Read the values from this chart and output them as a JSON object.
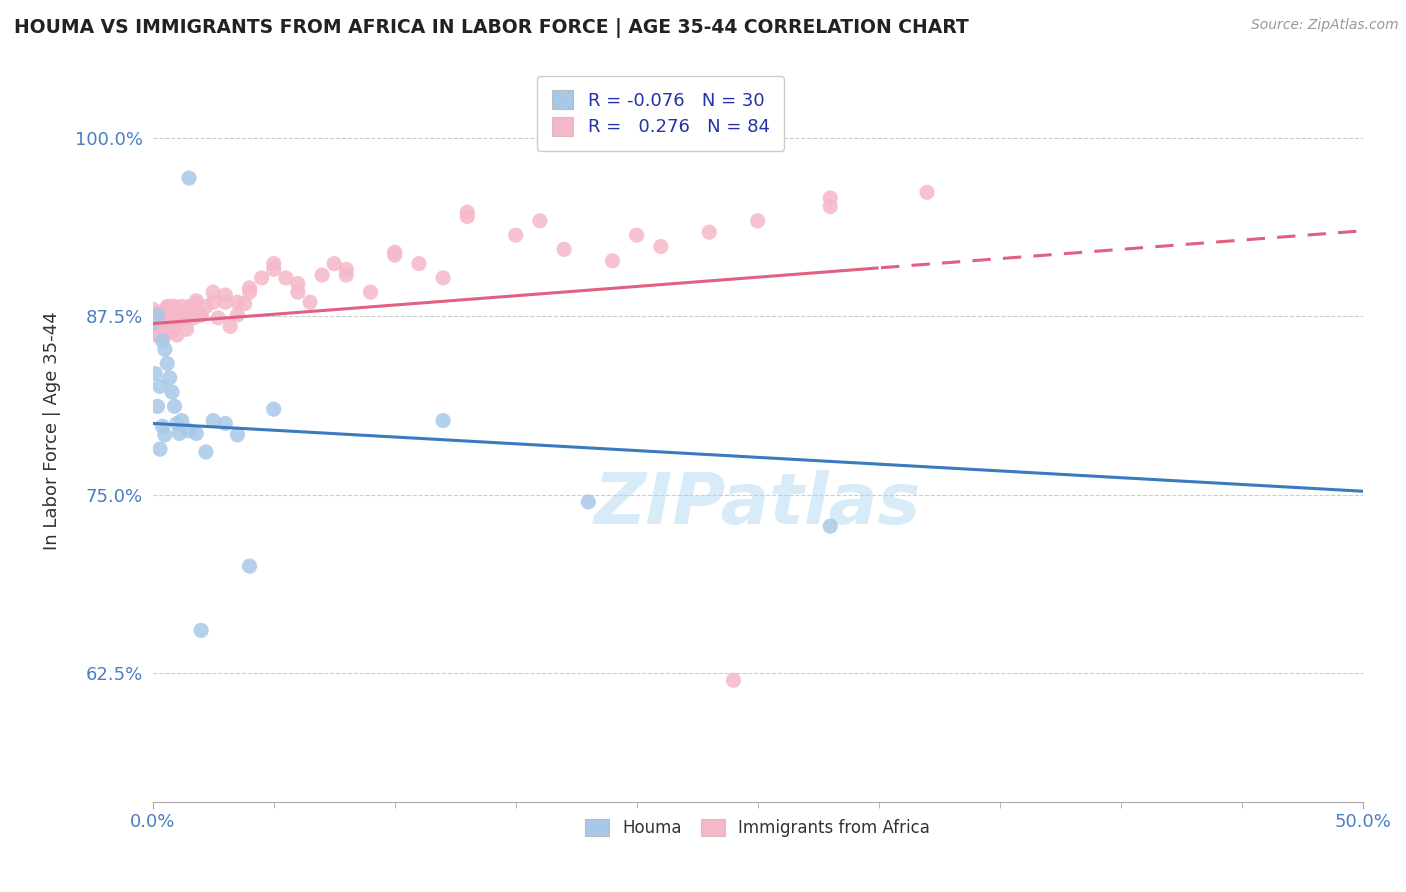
{
  "title": "HOUMA VS IMMIGRANTS FROM AFRICA IN LABOR FORCE | AGE 35-44 CORRELATION CHART",
  "source": "Source: ZipAtlas.com",
  "ylabel": "In Labor Force | Age 35-44",
  "yticks": [
    0.625,
    0.75,
    0.875,
    1.0
  ],
  "ytick_labels": [
    "62.5%",
    "75.0%",
    "87.5%",
    "100.0%"
  ],
  "xlim": [
    0.0,
    0.5
  ],
  "ylim": [
    0.535,
    1.055
  ],
  "legend_r_blue": "-0.076",
  "legend_n_blue": "30",
  "legend_r_pink": "0.276",
  "legend_n_pink": "84",
  "blue_color": "#a8c8e8",
  "pink_color": "#f5b8c8",
  "blue_line_color": "#3a7abf",
  "pink_line_color": "#e06080",
  "watermark": "ZIPatlas",
  "blue_intercept": 0.8,
  "blue_slope": -0.095,
  "pink_intercept": 0.87,
  "pink_slope": 0.13,
  "blue_x": [
    0.0,
    0.001,
    0.002,
    0.002,
    0.003,
    0.003,
    0.004,
    0.004,
    0.005,
    0.005,
    0.006,
    0.007,
    0.008,
    0.009,
    0.01,
    0.011,
    0.012,
    0.015,
    0.018,
    0.02,
    0.022,
    0.025,
    0.03,
    0.035,
    0.04,
    0.05,
    0.12,
    0.18,
    0.28,
    0.015
  ],
  "blue_y": [
    0.87,
    0.835,
    0.812,
    0.876,
    0.782,
    0.826,
    0.798,
    0.858,
    0.852,
    0.792,
    0.842,
    0.832,
    0.822,
    0.812,
    0.8,
    0.793,
    0.802,
    0.795,
    0.793,
    0.655,
    0.78,
    0.802,
    0.8,
    0.792,
    0.7,
    0.81,
    0.802,
    0.745,
    0.728,
    0.972
  ],
  "pink_x": [
    0.0,
    0.0,
    0.001,
    0.001,
    0.002,
    0.002,
    0.003,
    0.003,
    0.004,
    0.004,
    0.005,
    0.005,
    0.006,
    0.006,
    0.007,
    0.007,
    0.008,
    0.008,
    0.009,
    0.01,
    0.01,
    0.011,
    0.012,
    0.013,
    0.014,
    0.015,
    0.016,
    0.017,
    0.018,
    0.02,
    0.022,
    0.025,
    0.027,
    0.03,
    0.032,
    0.035,
    0.038,
    0.04,
    0.045,
    0.05,
    0.055,
    0.06,
    0.065,
    0.07,
    0.075,
    0.08,
    0.09,
    0.1,
    0.11,
    0.12,
    0.13,
    0.15,
    0.16,
    0.17,
    0.19,
    0.21,
    0.23,
    0.25,
    0.28,
    0.002,
    0.003,
    0.004,
    0.005,
    0.006,
    0.007,
    0.008,
    0.01,
    0.012,
    0.015,
    0.018,
    0.02,
    0.025,
    0.03,
    0.035,
    0.04,
    0.05,
    0.06,
    0.08,
    0.1,
    0.13,
    0.2,
    0.28,
    0.32,
    0.24
  ],
  "pink_y": [
    0.88,
    0.868,
    0.872,
    0.862,
    0.876,
    0.866,
    0.878,
    0.862,
    0.872,
    0.862,
    0.878,
    0.868,
    0.882,
    0.872,
    0.868,
    0.882,
    0.872,
    0.864,
    0.882,
    0.874,
    0.862,
    0.876,
    0.882,
    0.874,
    0.866,
    0.876,
    0.882,
    0.874,
    0.884,
    0.876,
    0.882,
    0.892,
    0.874,
    0.885,
    0.868,
    0.876,
    0.884,
    0.892,
    0.902,
    0.912,
    0.902,
    0.892,
    0.885,
    0.904,
    0.912,
    0.904,
    0.892,
    0.92,
    0.912,
    0.902,
    0.948,
    0.932,
    0.942,
    0.922,
    0.914,
    0.924,
    0.934,
    0.942,
    0.952,
    0.865,
    0.868,
    0.872,
    0.876,
    0.88,
    0.875,
    0.878,
    0.872,
    0.878,
    0.882,
    0.886,
    0.876,
    0.885,
    0.89,
    0.885,
    0.895,
    0.908,
    0.898,
    0.908,
    0.918,
    0.945,
    0.932,
    0.958,
    0.962,
    0.62
  ]
}
